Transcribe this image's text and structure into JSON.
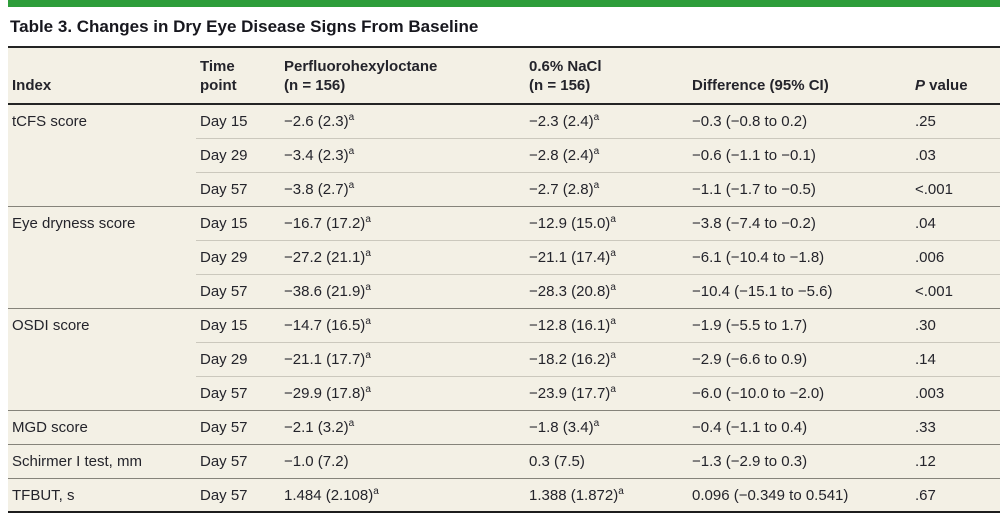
{
  "accent_color": "#2e9d3a",
  "table_background": "#f3f0e5",
  "title": "Table 3. Changes in Dry Eye Disease Signs From Baseline",
  "table": {
    "columns": [
      {
        "id": "index",
        "label": "Index"
      },
      {
        "id": "time_point",
        "label": "Time\npoint"
      },
      {
        "id": "pfho",
        "label": "Perfluorohexyloctane\n(n = 156)"
      },
      {
        "id": "nacl",
        "label": "0.6% NaCl\n(n = 156)"
      },
      {
        "id": "difference",
        "label": "Difference (95% CI)"
      },
      {
        "id": "p_value",
        "label": "P value"
      }
    ],
    "rows": [
      {
        "group_start": true,
        "index": "tCFS score",
        "time_point": "Day 15",
        "pfho": {
          "value": "−2.6 (2.3)",
          "sup": "a"
        },
        "nacl": {
          "value": "−2.3 (2.4)",
          "sup": "a"
        },
        "difference": "−0.3 (−0.8 to 0.2)",
        "p_value": ".25"
      },
      {
        "group_start": false,
        "index": "",
        "time_point": "Day 29",
        "pfho": {
          "value": "−3.4 (2.3)",
          "sup": "a"
        },
        "nacl": {
          "value": "−2.8 (2.4)",
          "sup": "a"
        },
        "difference": "−0.6 (−1.1 to −0.1)",
        "p_value": ".03"
      },
      {
        "group_start": false,
        "index": "",
        "time_point": "Day 57",
        "pfho": {
          "value": "−3.8 (2.7)",
          "sup": "a"
        },
        "nacl": {
          "value": "−2.7 (2.8)",
          "sup": "a"
        },
        "difference": "−1.1 (−1.7 to −0.5)",
        "p_value": "<.001"
      },
      {
        "group_start": true,
        "index": "Eye dryness score",
        "time_point": "Day 15",
        "pfho": {
          "value": "−16.7 (17.2)",
          "sup": "a"
        },
        "nacl": {
          "value": "−12.9 (15.0)",
          "sup": "a"
        },
        "difference": "−3.8 (−7.4 to −0.2)",
        "p_value": ".04"
      },
      {
        "group_start": false,
        "index": "",
        "time_point": "Day 29",
        "pfho": {
          "value": "−27.2 (21.1)",
          "sup": "a"
        },
        "nacl": {
          "value": "−21.1 (17.4)",
          "sup": "a"
        },
        "difference": "−6.1 (−10.4 to −1.8)",
        "p_value": ".006"
      },
      {
        "group_start": false,
        "index": "",
        "time_point": "Day 57",
        "pfho": {
          "value": "−38.6 (21.9)",
          "sup": "a"
        },
        "nacl": {
          "value": "−28.3 (20.8)",
          "sup": "a"
        },
        "difference": "−10.4 (−15.1 to −5.6)",
        "p_value": "<.001"
      },
      {
        "group_start": true,
        "index": "OSDI score",
        "time_point": "Day 15",
        "pfho": {
          "value": "−14.7 (16.5)",
          "sup": "a"
        },
        "nacl": {
          "value": "−12.8 (16.1)",
          "sup": "a"
        },
        "difference": "−1.9 (−5.5 to 1.7)",
        "p_value": ".30"
      },
      {
        "group_start": false,
        "index": "",
        "time_point": "Day 29",
        "pfho": {
          "value": "−21.1 (17.7)",
          "sup": "a"
        },
        "nacl": {
          "value": "−18.2 (16.2)",
          "sup": "a"
        },
        "difference": "−2.9 (−6.6 to 0.9)",
        "p_value": ".14"
      },
      {
        "group_start": false,
        "index": "",
        "time_point": "Day 57",
        "pfho": {
          "value": "−29.9 (17.8)",
          "sup": "a"
        },
        "nacl": {
          "value": "−23.9 (17.7)",
          "sup": "a"
        },
        "difference": "−6.0 (−10.0 to −2.0)",
        "p_value": ".003"
      },
      {
        "group_start": true,
        "index": "MGD score",
        "time_point": "Day 57",
        "pfho": {
          "value": "−2.1 (3.2)",
          "sup": "a"
        },
        "nacl": {
          "value": "−1.8 (3.4)",
          "sup": "a"
        },
        "difference": "−0.4 (−1.1 to 0.4)",
        "p_value": ".33"
      },
      {
        "group_start": true,
        "index": "Schirmer I test, mm",
        "time_point": "Day 57",
        "pfho": {
          "value": "−1.0 (7.2)",
          "sup": null
        },
        "nacl": {
          "value": "0.3 (7.5)",
          "sup": null
        },
        "difference": "−1.3 (−2.9 to 0.3)",
        "p_value": ".12"
      },
      {
        "group_start": true,
        "index": "TFBUT, s",
        "time_point": "Day 57",
        "pfho": {
          "value": "1.484 (2.108)",
          "sup": "a"
        },
        "nacl": {
          "value": "1.388 (1.872)",
          "sup": "a"
        },
        "difference": "0.096 (−0.349 to 0.541)",
        "p_value": ".67"
      }
    ]
  }
}
